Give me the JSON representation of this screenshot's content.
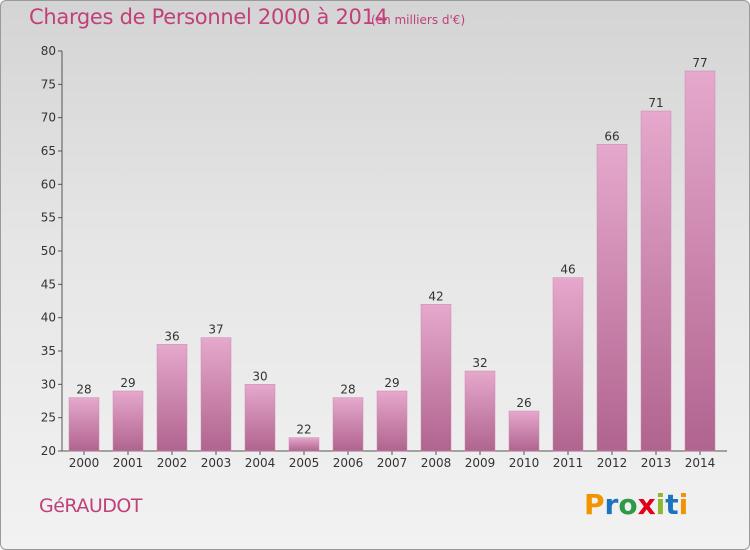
{
  "chart_data": {
    "type": "bar",
    "title": "Charges de Personnel 2000 à 2014",
    "subtitle": "(en milliers d'€)",
    "categories": [
      "2000",
      "2001",
      "2002",
      "2003",
      "2004",
      "2005",
      "2006",
      "2007",
      "2008",
      "2009",
      "2010",
      "2011",
      "2012",
      "2013",
      "2014"
    ],
    "values": [
      28,
      29,
      36,
      37,
      30,
      22,
      28,
      29,
      42,
      32,
      26,
      46,
      66,
      71,
      77
    ],
    "ylim": [
      20,
      80
    ],
    "yticks": [
      20,
      25,
      30,
      35,
      40,
      45,
      50,
      55,
      60,
      65,
      70,
      75,
      80
    ],
    "grid": false,
    "bar_color_top": "#e6a8cc",
    "bar_color_bottom": "#b0648f"
  },
  "footer": {
    "commune": "GéRAUDOT",
    "logo_letters": [
      "P",
      "r",
      "o",
      "x",
      "i",
      "t",
      "i"
    ],
    "logo_colors": [
      "#f29400",
      "#1e73be",
      "#2e9a47",
      "#e2001a",
      "#8cb82b",
      "#1e73be",
      "#f29400"
    ]
  }
}
